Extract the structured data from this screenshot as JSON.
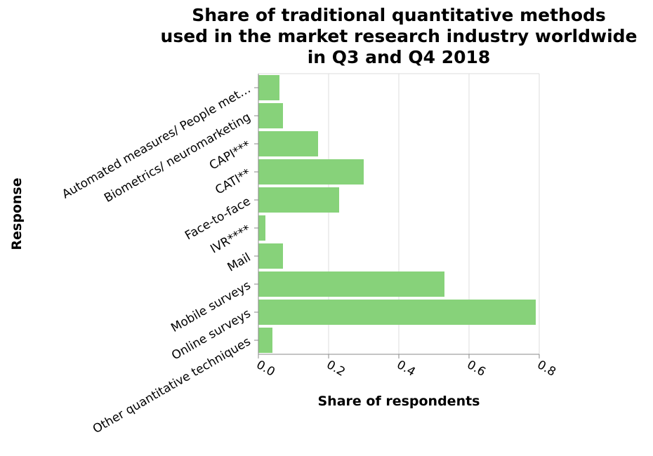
{
  "chart_data": {
    "type": "bar",
    "orientation": "horizontal",
    "title": [
      "Share of traditional quantitative methods",
      "used in the market research industry worldwide",
      "in Q3 and Q4 2018"
    ],
    "xlabel": "Share of respondents",
    "ylabel": "Response",
    "xlim": [
      0,
      0.8
    ],
    "x_ticks": [
      "0.0",
      "0.2",
      "0.4",
      "0.6",
      "0.8"
    ],
    "grid": true,
    "bar_color": "#87d27a",
    "categories": [
      "Automated measures/ People met…",
      "Biometrics/ neuromarketing",
      "CAPI***",
      "CATI**",
      "Face-to-face",
      "IVR****",
      "Mail",
      "Mobile surveys",
      "Online surveys",
      "Other quantitative techniques"
    ],
    "values": [
      0.06,
      0.07,
      0.17,
      0.3,
      0.23,
      0.02,
      0.07,
      0.53,
      0.79,
      0.04
    ]
  }
}
